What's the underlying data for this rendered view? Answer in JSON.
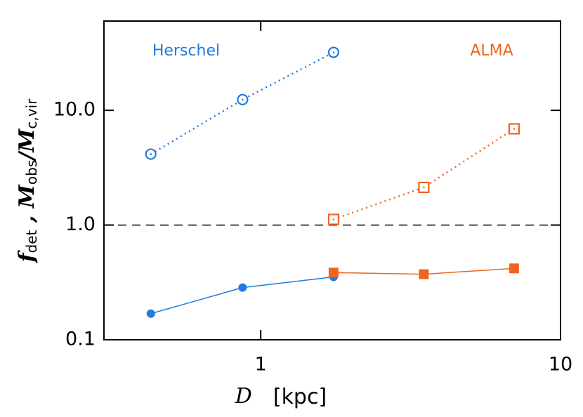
{
  "chart_data": {
    "type": "line",
    "x_label": {
      "variable": "D",
      "unit": "[kpc]"
    },
    "y_label_parts": [
      {
        "text": "f",
        "sub": false
      },
      {
        "text": "det",
        "sub": true
      },
      {
        "text": " ,  ",
        "sub": false
      },
      {
        "text": "M",
        "sub": false
      },
      {
        "text": "obs",
        "sub": true
      },
      {
        "text": "/",
        "sub": false
      },
      {
        "text": "M",
        "sub": false
      },
      {
        "text": "c,vir",
        "sub": true
      }
    ],
    "annotations": [
      {
        "text": "Herschel",
        "color": "#1f7be0"
      },
      {
        "text": "ALMA",
        "color": "#f0641e"
      }
    ],
    "xscale": "log",
    "yscale": "log",
    "xlim": [
      0.3,
      10
    ],
    "ylim": [
      0.1,
      60
    ],
    "xticks": [
      1,
      10
    ],
    "yticks": [
      {
        "value": 0.1,
        "label": "0.1"
      },
      {
        "value": 1,
        "label": "1.0"
      },
      {
        "value": 10,
        "label": "10.0"
      }
    ],
    "hline": 1,
    "series": [
      {
        "color": "#1f7be0",
        "marker": "circle",
        "filled": false,
        "linestyle": "dotted",
        "x": [
          0.43,
          0.87,
          1.75
        ],
        "values": [
          4.15,
          12.4,
          32
        ]
      },
      {
        "color": "#1f7be0",
        "marker": "circle",
        "filled": true,
        "linestyle": "solid",
        "x": [
          0.43,
          0.87,
          1.75
        ],
        "values": [
          0.169,
          0.285,
          0.353
        ]
      },
      {
        "color": "#f0641e",
        "marker": "square",
        "filled": false,
        "linestyle": "dotted",
        "x": [
          1.75,
          3.5,
          7.0
        ],
        "values": [
          1.12,
          2.13,
          6.9
        ]
      },
      {
        "color": "#f0641e",
        "marker": "square",
        "filled": true,
        "linestyle": "solid",
        "x": [
          1.75,
          3.5,
          7.0
        ],
        "values": [
          0.385,
          0.373,
          0.419
        ]
      }
    ]
  }
}
